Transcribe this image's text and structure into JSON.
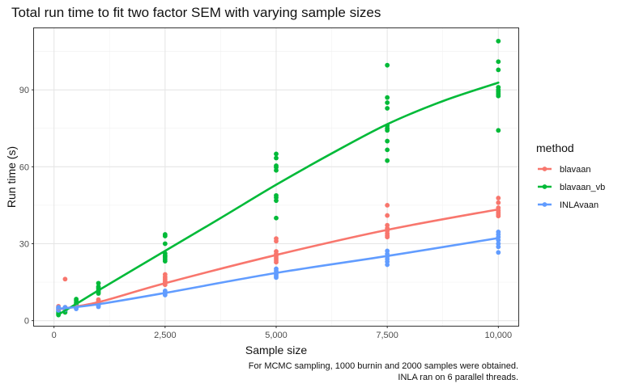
{
  "chart_data": {
    "type": "scatter",
    "title": "Total run time to fit two factor SEM with varying sample sizes",
    "xlabel": "Sample size",
    "ylabel": "Run time (s)",
    "xlim": [
      -450,
      10450
    ],
    "ylim": [
      -2,
      114
    ],
    "x_ticks": [
      0,
      2500,
      5000,
      7500,
      10000
    ],
    "x_tick_labels": [
      "0",
      "2,500",
      "5,000",
      "7,500",
      "10,000"
    ],
    "y_ticks": [
      0,
      30,
      60,
      90
    ],
    "y_tick_labels": [
      "0",
      "30",
      "60",
      "90"
    ],
    "legend": {
      "title": "method",
      "position": "right"
    },
    "caption": [
      "For MCMC sampling, 1000 burnin and 2000 samples were obtained.",
      "INLA ran on 6 parallel threads."
    ],
    "series": [
      {
        "name": "blavaan",
        "color": "#F8766D",
        "points": [
          [
            100,
            5.6
          ],
          [
            100,
            5.2
          ],
          [
            100,
            4.8
          ],
          [
            100,
            4.4
          ],
          [
            100,
            4.0
          ],
          [
            250,
            16.2
          ],
          [
            250,
            5.2
          ],
          [
            250,
            4.6
          ],
          [
            250,
            4.2
          ],
          [
            250,
            3.8
          ],
          [
            500,
            6.4
          ],
          [
            500,
            6.0
          ],
          [
            500,
            5.6
          ],
          [
            500,
            5.2
          ],
          [
            1000,
            8.2
          ],
          [
            1000,
            7.6
          ],
          [
            1000,
            7.2
          ],
          [
            1000,
            6.8
          ],
          [
            1000,
            6.4
          ],
          [
            2500,
            18.0
          ],
          [
            2500,
            17.0
          ],
          [
            2500,
            16.2
          ],
          [
            2500,
            15.4
          ],
          [
            2500,
            14.8
          ],
          [
            2500,
            14.0
          ],
          [
            5000,
            32.0
          ],
          [
            5000,
            31.0
          ],
          [
            5000,
            27.0
          ],
          [
            5000,
            26.0
          ],
          [
            5000,
            25.2
          ],
          [
            5000,
            24.4
          ],
          [
            5000,
            23.6
          ],
          [
            5000,
            22.8
          ],
          [
            7500,
            45.0
          ],
          [
            7500,
            41.0
          ],
          [
            7500,
            37.2
          ],
          [
            7500,
            36.0
          ],
          [
            7500,
            35.0
          ],
          [
            7500,
            34.0
          ],
          [
            7500,
            33.2
          ],
          [
            7500,
            32.6
          ],
          [
            10000,
            47.8
          ],
          [
            10000,
            46.0
          ],
          [
            10000,
            44.0
          ],
          [
            10000,
            43.0
          ],
          [
            10000,
            42.2
          ],
          [
            10000,
            41.5
          ],
          [
            10000,
            40.8
          ]
        ],
        "smooth": [
          [
            100,
            4.4
          ],
          [
            1000,
            7.2
          ],
          [
            2500,
            14.6
          ],
          [
            5000,
            25.6
          ],
          [
            7500,
            35.4
          ],
          [
            10000,
            43.4
          ]
        ]
      },
      {
        "name": "blavaan_vb",
        "color": "#00BA38",
        "points": [
          [
            100,
            3.6
          ],
          [
            100,
            3.0
          ],
          [
            100,
            2.6
          ],
          [
            100,
            2.2
          ],
          [
            250,
            4.2
          ],
          [
            250,
            3.8
          ],
          [
            250,
            3.2
          ],
          [
            500,
            8.4
          ],
          [
            500,
            7.8
          ],
          [
            500,
            7.0
          ],
          [
            500,
            6.4
          ],
          [
            500,
            6.0
          ],
          [
            1000,
            14.6
          ],
          [
            1000,
            13.2
          ],
          [
            1000,
            12.6
          ],
          [
            1000,
            11.8
          ],
          [
            1000,
            11.2
          ],
          [
            1000,
            10.6
          ],
          [
            2500,
            33.6
          ],
          [
            2500,
            33.0
          ],
          [
            2500,
            30.0
          ],
          [
            2500,
            26.2
          ],
          [
            2500,
            25.4
          ],
          [
            2500,
            24.8
          ],
          [
            2500,
            24.0
          ],
          [
            2500,
            23.2
          ],
          [
            5000,
            65.0
          ],
          [
            5000,
            63.4
          ],
          [
            5000,
            60.4
          ],
          [
            5000,
            59.8
          ],
          [
            5000,
            58.6
          ],
          [
            5000,
            48.8
          ],
          [
            5000,
            48.0
          ],
          [
            5000,
            46.8
          ],
          [
            5000,
            40.0
          ],
          [
            7500,
            99.6
          ],
          [
            7500,
            87.0
          ],
          [
            7500,
            85.0
          ],
          [
            7500,
            82.8
          ],
          [
            7500,
            76.0
          ],
          [
            7500,
            75.0
          ],
          [
            7500,
            74.2
          ],
          [
            7500,
            70.0
          ],
          [
            7500,
            66.6
          ],
          [
            7500,
            62.4
          ],
          [
            10000,
            109.0
          ],
          [
            10000,
            101.0
          ],
          [
            10000,
            97.8
          ],
          [
            10000,
            91.0
          ],
          [
            10000,
            90.0
          ],
          [
            10000,
            89.2
          ],
          [
            10000,
            88.4
          ],
          [
            10000,
            87.6
          ],
          [
            10000,
            74.2
          ]
        ],
        "smooth": [
          [
            100,
            2.4
          ],
          [
            500,
            6.5
          ],
          [
            1000,
            11.8
          ],
          [
            2500,
            27.2
          ],
          [
            3750,
            40.0
          ],
          [
            5000,
            53.0
          ],
          [
            6250,
            65.2
          ],
          [
            7500,
            76.6
          ],
          [
            8750,
            85.6
          ],
          [
            10000,
            92.8
          ]
        ]
      },
      {
        "name": "INLAvaan",
        "color": "#619CFF",
        "points": [
          [
            100,
            5.2
          ],
          [
            100,
            4.8
          ],
          [
            100,
            4.4
          ],
          [
            100,
            4.0
          ],
          [
            250,
            5.2
          ],
          [
            250,
            4.6
          ],
          [
            250,
            4.2
          ],
          [
            500,
            5.6
          ],
          [
            500,
            5.2
          ],
          [
            500,
            4.8
          ],
          [
            500,
            4.6
          ],
          [
            1000,
            6.6
          ],
          [
            1000,
            6.2
          ],
          [
            1000,
            5.8
          ],
          [
            1000,
            5.4
          ],
          [
            2500,
            11.6
          ],
          [
            2500,
            11.0
          ],
          [
            2500,
            10.6
          ],
          [
            2500,
            10.0
          ],
          [
            5000,
            20.2
          ],
          [
            5000,
            19.4
          ],
          [
            5000,
            18.6
          ],
          [
            5000,
            18.0
          ],
          [
            5000,
            17.4
          ],
          [
            5000,
            16.8
          ],
          [
            7500,
            27.2
          ],
          [
            7500,
            26.0
          ],
          [
            7500,
            25.0
          ],
          [
            7500,
            24.0
          ],
          [
            7500,
            23.0
          ],
          [
            7500,
            21.8
          ],
          [
            10000,
            34.6
          ],
          [
            10000,
            33.6
          ],
          [
            10000,
            32.6
          ],
          [
            10000,
            31.4
          ],
          [
            10000,
            30.0
          ],
          [
            10000,
            28.8
          ],
          [
            10000,
            26.6
          ]
        ],
        "smooth": [
          [
            100,
            4.6
          ],
          [
            1000,
            6.4
          ],
          [
            2500,
            10.8
          ],
          [
            5000,
            18.6
          ],
          [
            7500,
            25.2
          ],
          [
            10000,
            32.2
          ]
        ]
      }
    ]
  }
}
